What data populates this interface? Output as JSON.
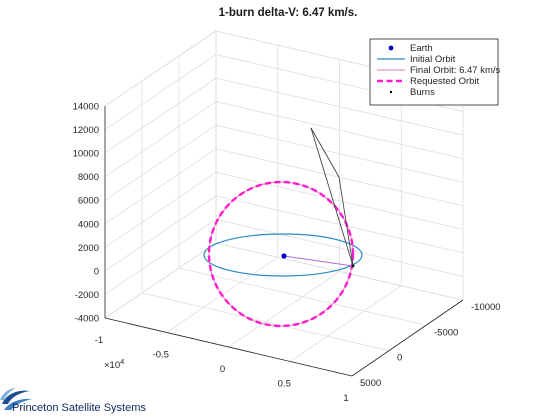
{
  "chart_data": {
    "type": "line",
    "title": "1-burn delta-V: 6.47 km/s.",
    "projection": "3d",
    "grid": true,
    "legend_position": "top-right",
    "x_axis": {
      "ticks": [
        "-1",
        "-0.5",
        "0",
        "0.5",
        "1"
      ],
      "multiplier_label": "×10",
      "multiplier_exponent": "4",
      "range": [
        -10000,
        10000
      ]
    },
    "y_axis": {
      "ticks": [
        "-10000",
        "-5000",
        "0",
        "5000"
      ],
      "range": [
        -10000,
        5000
      ]
    },
    "z_axis": {
      "ticks": [
        "-4000",
        "-2000",
        "0",
        "2000",
        "4000",
        "6000",
        "8000",
        "10000",
        "12000",
        "14000"
      ],
      "range": [
        -4000,
        14000
      ]
    },
    "series": [
      {
        "name": "Earth",
        "style": "marker",
        "color": "#0000cc",
        "points": [
          [
            0,
            0,
            1000
          ]
        ]
      },
      {
        "name": "Initial Orbit",
        "style": "line",
        "color": "#2b8bc6",
        "description_points": [
          [
            -8000,
            0,
            1000
          ],
          [
            8000,
            0,
            1000
          ]
        ]
      },
      {
        "name": "Final Orbit: 6.47 km/s",
        "style": "line",
        "color": "#e97ab4"
      },
      {
        "name": "Requested Orbit",
        "style": "dashed",
        "color": "#ff1bd0"
      },
      {
        "name": "Burns",
        "style": "marker",
        "color": "#000000"
      }
    ]
  },
  "branding": {
    "company": "Princeton Satellite Systems"
  },
  "colors": {
    "initial_orbit": "#2b8bc6",
    "final_orbit": "#e97ab4",
    "requested_orbit": "#ff1bd0",
    "earth": "#0000cc",
    "grid": "#dedede",
    "axis": "#262626"
  }
}
